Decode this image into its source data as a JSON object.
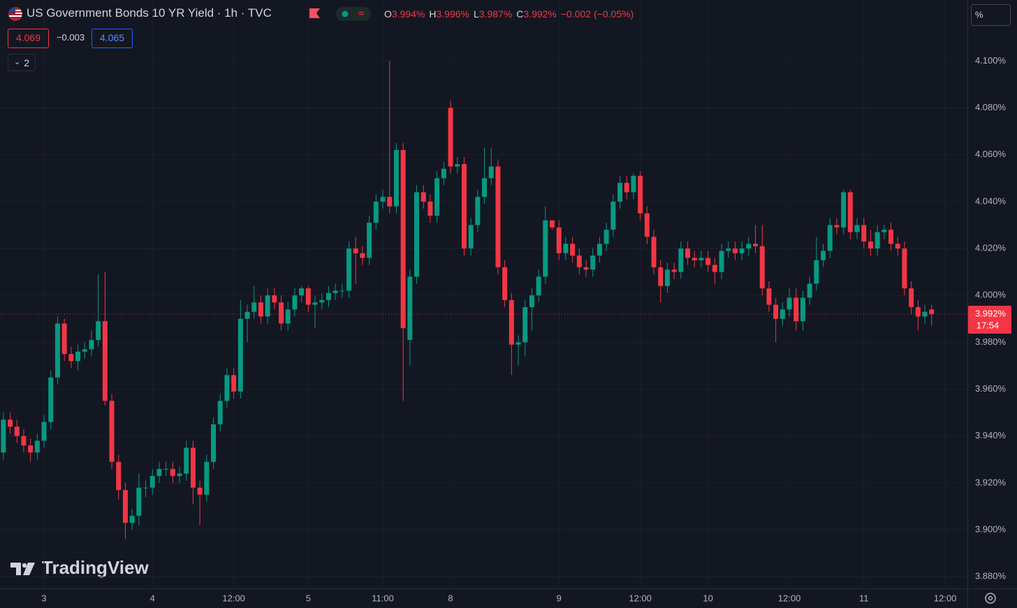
{
  "chart_data": {
    "type": "candlestick",
    "title": "US Government Bonds 10 YR Yield · 1h · TVC",
    "open": [
      3.933,
      3.947,
      3.944,
      3.94,
      3.936,
      3.933,
      3.938,
      3.946,
      3.965,
      3.988,
      3.975,
      3.972,
      3.976,
      3.977,
      3.981,
      3.989,
      3.955,
      3.929,
      3.917,
      3.903,
      3.906,
      3.918,
      3.918,
      3.923,
      3.926,
      3.926,
      3.923,
      3.924,
      3.935,
      3.918,
      3.915,
      3.929,
      3.945,
      3.955,
      3.966,
      3.959,
      3.99,
      3.993,
      3.997,
      3.991,
      4.0,
      3.997,
      3.988,
      3.994,
      4.0,
      4.003,
      3.996,
      3.997,
      3.998,
      4.001,
      4.002,
      4.002,
      4.02,
      4.018,
      4.016,
      4.031,
      4.04,
      4.042,
      4.038,
      4.062,
      3.981,
      4.008,
      4.044,
      4.04,
      4.034,
      4.05,
      4.08,
      4.055,
      4.056,
      4.02,
      4.03,
      4.042,
      4.05,
      4.055,
      4.012,
      3.998,
      3.979,
      3.98,
      3.995,
      4.0,
      4.008,
      4.032,
      4.029,
      4.018,
      4.022,
      4.017,
      4.012,
      4.011,
      4.017,
      4.022,
      4.028,
      4.04,
      4.048,
      4.044,
      4.051,
      4.035,
      4.025,
      4.012,
      4.004,
      4.011,
      4.01,
      4.02,
      4.016,
      4.015,
      4.016,
      4.013,
      4.01,
      4.019,
      4.02,
      4.018,
      4.02,
      4.022,
      4.021,
      4.003,
      3.996,
      3.99,
      3.994,
      3.999,
      3.989,
      3.999,
      4.005,
      4.015,
      4.019,
      4.03,
      4.029,
      4.044,
      4.027,
      4.03,
      4.023,
      4.02,
      4.027,
      4.028,
      4.022,
      4.02,
      4.003,
      3.995,
      3.991,
      3.994
    ],
    "high": [
      3.95,
      3.95,
      3.947,
      3.943,
      3.939,
      3.941,
      3.949,
      3.968,
      3.991,
      3.99,
      3.978,
      3.979,
      3.98,
      3.985,
      4.009,
      4.01,
      3.958,
      3.932,
      3.92,
      3.909,
      3.924,
      3.921,
      3.926,
      3.929,
      3.929,
      3.929,
      3.927,
      3.938,
      3.938,
      3.921,
      3.932,
      3.948,
      3.958,
      3.969,
      3.969,
      3.998,
      3.996,
      4.004,
      4.0,
      4.003,
      4.003,
      4.0,
      3.997,
      4.003,
      4.004,
      4.004,
      4.0,
      4.001,
      4.004,
      4.005,
      4.005,
      4.023,
      4.025,
      4.021,
      4.034,
      4.043,
      4.045,
      4.1,
      4.065,
      4.065,
      4.011,
      4.047,
      4.047,
      4.043,
      4.053,
      4.057,
      4.083,
      4.059,
      4.059,
      4.033,
      4.045,
      4.063,
      4.063,
      4.058,
      4.015,
      4.001,
      3.983,
      3.998,
      4.003,
      4.011,
      4.038,
      4.032,
      4.032,
      4.025,
      4.025,
      4.02,
      4.015,
      4.02,
      4.025,
      4.031,
      4.043,
      4.051,
      4.051,
      4.052,
      4.053,
      4.038,
      4.028,
      4.015,
      4.014,
      4.014,
      4.023,
      4.023,
      4.019,
      4.019,
      4.019,
      4.016,
      4.022,
      4.023,
      4.023,
      4.023,
      4.025,
      4.03,
      4.03,
      4.006,
      3.999,
      3.997,
      4.003,
      4.003,
      4.002,
      4.008,
      4.025,
      4.022,
      4.033,
      4.033,
      4.045,
      4.045,
      4.033,
      4.033,
      4.028,
      4.03,
      4.03,
      4.031,
      4.025,
      4.023,
      4.006,
      3.998,
      3.996,
      3.996
    ],
    "low": [
      3.93,
      3.941,
      3.937,
      3.933,
      3.929,
      3.93,
      3.935,
      3.943,
      3.962,
      3.972,
      3.969,
      3.968,
      3.973,
      3.974,
      3.978,
      3.953,
      3.926,
      3.913,
      3.896,
      3.9,
      3.902,
      3.914,
      3.915,
      3.92,
      3.923,
      3.92,
      3.92,
      3.921,
      3.911,
      3.902,
      3.912,
      3.926,
      3.942,
      3.952,
      3.956,
      3.956,
      3.98,
      3.99,
      3.988,
      3.988,
      3.994,
      3.985,
      3.985,
      3.991,
      3.997,
      3.993,
      3.986,
      3.994,
      3.995,
      3.998,
      3.999,
      3.999,
      4.005,
      4.013,
      4.013,
      4.028,
      4.037,
      4.035,
      4.035,
      3.955,
      3.97,
      4.005,
      4.037,
      4.031,
      4.031,
      4.047,
      4.052,
      4.052,
      4.017,
      4.017,
      4.027,
      4.039,
      4.047,
      4.009,
      3.995,
      3.966,
      3.97,
      3.974,
      3.985,
      3.997,
      4.005,
      4.028,
      4.015,
      4.015,
      4.014,
      4.009,
      4.008,
      4.008,
      4.014,
      4.019,
      4.025,
      4.037,
      4.041,
      4.041,
      4.032,
      4.022,
      4.009,
      3.997,
      4.001,
      4.007,
      4.007,
      4.013,
      4.012,
      4.012,
      4.01,
      4.005,
      4.007,
      4.016,
      4.015,
      4.015,
      4.017,
      4.018,
      4.0,
      3.993,
      3.98,
      3.987,
      3.991,
      3.985,
      3.985,
      3.996,
      4.002,
      4.012,
      4.016,
      4.026,
      4.026,
      4.024,
      4.024,
      4.02,
      4.017,
      4.017,
      4.024,
      4.019,
      4.017,
      4.0,
      3.992,
      3.985,
      3.988,
      3.987
    ],
    "close": [
      3.947,
      3.944,
      3.94,
      3.936,
      3.933,
      3.938,
      3.946,
      3.965,
      3.988,
      3.975,
      3.972,
      3.976,
      3.977,
      3.981,
      3.989,
      3.955,
      3.929,
      3.917,
      3.903,
      3.906,
      3.918,
      3.918,
      3.923,
      3.926,
      3.926,
      3.923,
      3.924,
      3.935,
      3.918,
      3.915,
      3.929,
      3.945,
      3.955,
      3.966,
      3.959,
      3.99,
      3.993,
      3.997,
      3.991,
      4.0,
      3.997,
      3.988,
      3.994,
      4.0,
      4.003,
      3.996,
      3.997,
      3.998,
      4.001,
      4.002,
      4.002,
      4.02,
      4.018,
      4.016,
      4.031,
      4.04,
      4.042,
      4.038,
      4.062,
      3.986,
      4.008,
      4.044,
      4.04,
      4.034,
      4.05,
      4.054,
      4.055,
      4.056,
      4.02,
      4.03,
      4.042,
      4.05,
      4.055,
      4.012,
      3.998,
      3.979,
      3.98,
      3.995,
      4.0,
      4.008,
      4.032,
      4.029,
      4.018,
      4.022,
      4.017,
      4.012,
      4.011,
      4.017,
      4.022,
      4.028,
      4.04,
      4.048,
      4.044,
      4.051,
      4.035,
      4.025,
      4.012,
      4.004,
      4.011,
      4.01,
      4.02,
      4.016,
      4.015,
      4.016,
      4.013,
      4.01,
      4.019,
      4.02,
      4.018,
      4.02,
      4.022,
      4.021,
      4.003,
      3.996,
      3.99,
      3.994,
      3.999,
      3.989,
      3.999,
      4.005,
      4.015,
      4.019,
      4.03,
      4.029,
      4.044,
      4.027,
      4.03,
      4.023,
      4.02,
      4.027,
      4.028,
      4.022,
      4.02,
      4.003,
      3.995,
      3.991,
      3.993,
      3.992
    ],
    "up_color": "#089981",
    "down_color": "#f23645",
    "xticks": [
      {
        "value": 6,
        "label": "3"
      },
      {
        "value": 22,
        "label": "4"
      },
      {
        "value": 34,
        "label": "12:00"
      },
      {
        "value": 45,
        "label": "5"
      },
      {
        "value": 56,
        "label": "11:00"
      },
      {
        "value": 66,
        "label": "8"
      },
      {
        "value": 82,
        "label": "9"
      },
      {
        "value": 94,
        "label": "12:00"
      },
      {
        "value": 104,
        "label": "10"
      },
      {
        "value": 116,
        "label": "12:00"
      },
      {
        "value": 127,
        "label": "11"
      },
      {
        "value": 139,
        "label": "12:00"
      }
    ],
    "ylim": [
      3.875,
      4.126
    ],
    "yticks": [
      {
        "value": 3.88,
        "label": "3.880%"
      },
      {
        "value": 3.9,
        "label": "3.900%"
      },
      {
        "value": 3.92,
        "label": "3.920%"
      },
      {
        "value": 3.94,
        "label": "3.940%"
      },
      {
        "value": 3.96,
        "label": "3.960%"
      },
      {
        "value": 3.98,
        "label": "3.980%"
      },
      {
        "value": 4.0,
        "label": "4.000%"
      },
      {
        "value": 4.02,
        "label": "4.020%"
      },
      {
        "value": 4.04,
        "label": "4.040%"
      },
      {
        "value": 4.06,
        "label": "4.060%"
      },
      {
        "value": 4.08,
        "label": "4.080%"
      },
      {
        "value": 4.1,
        "label": "4.100%"
      }
    ],
    "grid": true,
    "last_price": {
      "value": 3.992,
      "label": "3.992%"
    },
    "countdown": "17:54"
  },
  "header": {
    "ohlc": [
      {
        "key": "O",
        "value": "3.994%"
      },
      {
        "key": "H",
        "value": "3.996%"
      },
      {
        "key": "L",
        "value": "3.987%"
      },
      {
        "key": "C",
        "value": "3.992%"
      }
    ],
    "change": "−0.002 (−0.05%)",
    "bid": "4.069",
    "spread": "−0.003",
    "ask": "4.065",
    "indicators": "2",
    "scale_mode": "%",
    "watermark": "TradingView"
  }
}
